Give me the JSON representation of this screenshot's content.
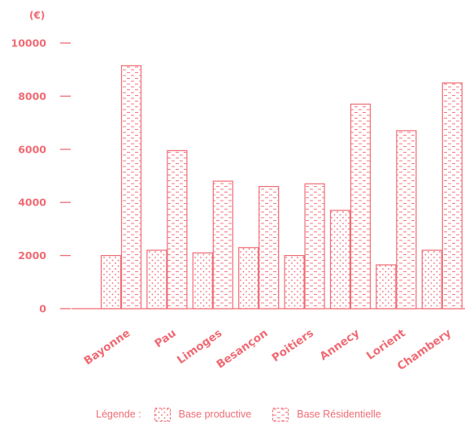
{
  "colors": {
    "accent": "#f06b74",
    "background": "#ffffff"
  },
  "legend": {
    "label": "Légende :",
    "productive": "Base productive",
    "residential": "Base Résidentielle"
  },
  "chart_data": {
    "type": "bar",
    "title": "",
    "unit_label": "(€)",
    "xlabel": "",
    "ylabel": "",
    "ylim": [
      0,
      10000
    ],
    "yticks": [
      0,
      2000,
      4000,
      6000,
      8000,
      10000
    ],
    "categories": [
      "Bayonne",
      "Pau",
      "Limoges",
      "Besançon",
      "Poitiers",
      "Annecy",
      "Lorient",
      "Chambery"
    ],
    "series": [
      {
        "name": "Base productive",
        "pattern": "dots",
        "values": [
          2000,
          2200,
          2100,
          2300,
          2000,
          3700,
          1650,
          2200
        ]
      },
      {
        "name": "Base Résidentielle",
        "pattern": "dashes",
        "values": [
          9150,
          5950,
          4800,
          4600,
          4700,
          7700,
          6700,
          8500
        ]
      }
    ],
    "grid": false,
    "legend_position": "bottom"
  }
}
